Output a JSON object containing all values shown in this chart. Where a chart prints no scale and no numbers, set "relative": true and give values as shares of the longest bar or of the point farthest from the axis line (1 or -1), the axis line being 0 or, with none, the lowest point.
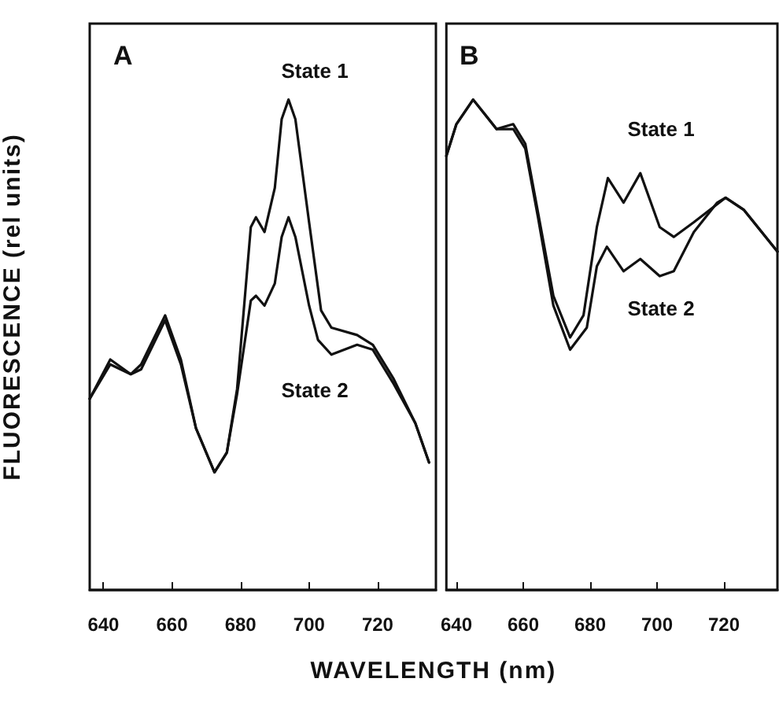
{
  "chart_data": [
    {
      "type": "line",
      "title": "A",
      "ylabel": "FLUORESCENCE (rel units)",
      "xlabel": "WAVELENGTH (nm)",
      "relative": true,
      "xlim": [
        636,
        737
      ],
      "xticks": [
        640,
        660,
        680,
        700,
        720
      ],
      "grid": false,
      "marker": "none",
      "line_style": "solid",
      "tick_labels": "x",
      "annotations": [
        "State 1",
        "State 2"
      ],
      "series": [
        {
          "color": "#111111",
          "x": [
            636,
            642,
            648,
            651,
            658,
            662.6,
            667,
            672.4,
            676,
            679,
            683,
            684.5,
            687,
            690,
            692,
            694,
            696,
            700,
            703.5,
            706.5,
            714,
            718.6,
            724.7,
            731,
            735
          ],
          "values": [
            0.39,
            0.47,
            0.44,
            0.46,
            0.56,
            0.47,
            0.33,
            0.24,
            0.28,
            0.41,
            0.74,
            0.76,
            0.73,
            0.82,
            0.96,
            1.0,
            0.96,
            0.75,
            0.57,
            0.535,
            0.52,
            0.5,
            0.43,
            0.34,
            0.26
          ]
        },
        {
          "color": "#111111",
          "x": [
            636,
            642,
            648,
            651,
            658,
            662.6,
            667,
            672.4,
            676,
            679,
            683,
            684.5,
            687,
            690,
            692,
            694,
            696,
            700,
            702.6,
            706.5,
            714,
            718.6,
            724.7,
            731,
            735
          ],
          "values": [
            0.39,
            0.46,
            0.44,
            0.45,
            0.55,
            0.46,
            0.33,
            0.24,
            0.28,
            0.4,
            0.59,
            0.6,
            0.58,
            0.625,
            0.72,
            0.76,
            0.72,
            0.58,
            0.51,
            0.48,
            0.5,
            0.49,
            0.42,
            0.34,
            0.26
          ]
        }
      ]
    },
    {
      "type": "line",
      "title": "B",
      "relative": true,
      "xlim": [
        637,
        736
      ],
      "xticks": [
        640,
        660,
        680,
        700,
        720
      ],
      "grid": false,
      "marker": "none",
      "line_style": "solid",
      "tick_labels": "x",
      "annotations": [
        "State 1",
        "State 2"
      ],
      "series": [
        {
          "color": "#111111",
          "x": [
            637,
            640,
            645,
            648.5,
            652,
            657,
            660.6,
            664.4,
            669,
            674,
            678,
            682,
            685.3,
            690,
            695,
            700.8,
            705,
            711,
            720.5,
            726,
            736
          ],
          "values": [
            0.885,
            0.95,
            1.0,
            0.97,
            0.94,
            0.95,
            0.91,
            0.77,
            0.6,
            0.515,
            0.56,
            0.74,
            0.84,
            0.79,
            0.85,
            0.74,
            0.72,
            0.75,
            0.8,
            0.775,
            0.69
          ]
        },
        {
          "color": "#111111",
          "x": [
            637,
            640,
            645,
            648.5,
            652,
            657,
            660.6,
            664.4,
            669,
            674,
            679,
            682,
            685,
            690,
            695,
            700.8,
            705,
            711,
            718,
            720.5,
            726,
            736
          ],
          "values": [
            0.885,
            0.95,
            1.0,
            0.97,
            0.94,
            0.94,
            0.9,
            0.76,
            0.58,
            0.49,
            0.535,
            0.66,
            0.7,
            0.65,
            0.675,
            0.64,
            0.65,
            0.73,
            0.79,
            0.8,
            0.775,
            0.69
          ]
        }
      ]
    }
  ]
}
